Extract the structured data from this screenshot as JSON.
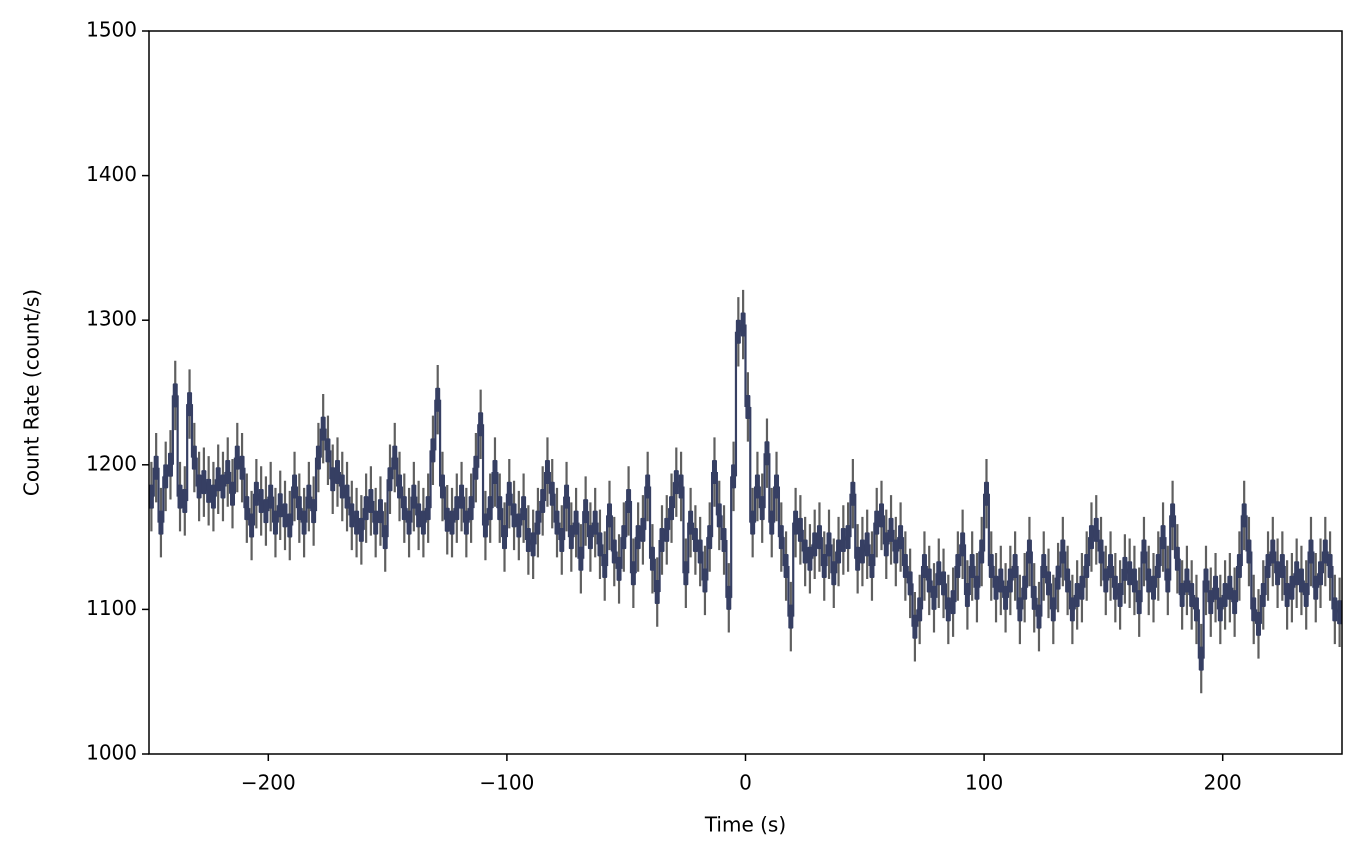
{
  "chart_data": {
    "type": "step-errorbar",
    "xlabel": "Time (s)",
    "ylabel": "Count Rate (count/s)",
    "xlim": [
      -250,
      250
    ],
    "ylim": [
      1000,
      1500
    ],
    "xticks": [
      {
        "value": -200,
        "label": "−200"
      },
      {
        "value": -100,
        "label": "−100"
      },
      0,
      100,
      200
    ],
    "yticks": [
      1000,
      1100,
      1200,
      1300,
      1400,
      1500
    ],
    "yerr": 24,
    "errcolor": "#5f5f5f",
    "x": [
      -249,
      -247,
      -245,
      -243,
      -241,
      -239,
      -237,
      -235,
      -233,
      -231,
      -229,
      -227,
      -225,
      -223,
      -221,
      -219,
      -217,
      -215,
      -213,
      -211,
      -209,
      -207,
      -205,
      -203,
      -201,
      -199,
      -197,
      -195,
      -193,
      -191,
      -189,
      -187,
      -185,
      -183,
      -181,
      -179,
      -177,
      -175,
      -173,
      -171,
      -169,
      -167,
      -165,
      -163,
      -161,
      -159,
      -157,
      -155,
      -153,
      -151,
      -149,
      -147,
      -145,
      -143,
      -141,
      -139,
      -137,
      -135,
      -133,
      -131,
      -129,
      -127,
      -125,
      -123,
      -121,
      -119,
      -117,
      -115,
      -113,
      -111,
      -109,
      -107,
      -105,
      -103,
      -101,
      -99,
      -97,
      -95,
      -93,
      -91,
      -89,
      -87,
      -85,
      -83,
      -81,
      -79,
      -77,
      -75,
      -73,
      -71,
      -69,
      -67,
      -65,
      -63,
      -61,
      -59,
      -57,
      -55,
      -53,
      -51,
      -49,
      -47,
      -45,
      -43,
      -41,
      -39,
      -37,
      -35,
      -33,
      -31,
      -29,
      -27,
      -25,
      -23,
      -21,
      -19,
      -17,
      -15,
      -13,
      -11,
      -9,
      -7,
      -5,
      -3,
      -1,
      1,
      3,
      5,
      7,
      9,
      11,
      13,
      15,
      17,
      19,
      21,
      23,
      25,
      27,
      29,
      31,
      33,
      35,
      37,
      39,
      41,
      43,
      45,
      47,
      49,
      51,
      53,
      55,
      57,
      59,
      61,
      63,
      65,
      67,
      69,
      71,
      73,
      75,
      77,
      79,
      81,
      83,
      85,
      87,
      89,
      91,
      93,
      95,
      97,
      99,
      101,
      103,
      105,
      107,
      109,
      111,
      113,
      115,
      117,
      119,
      121,
      123,
      125,
      127,
      129,
      131,
      133,
      135,
      137,
      139,
      141,
      143,
      145,
      147,
      149,
      151,
      153,
      155,
      157,
      159,
      161,
      163,
      165,
      167,
      169,
      171,
      173,
      175,
      177,
      179,
      181,
      183,
      185,
      187,
      189,
      191,
      193,
      195,
      197,
      199,
      201,
      203,
      205,
      207,
      209,
      211,
      213,
      215,
      217,
      219,
      221,
      223,
      225,
      227,
      229,
      231,
      233,
      235,
      237,
      239,
      241,
      243,
      245,
      247,
      249
    ],
    "series": [
      {
        "color": "#363f63",
        "values": [
          1178,
          1198,
          1160,
          1192,
          1200,
          1248,
          1178,
          1175,
          1242,
          1205,
          1185,
          1188,
          1182,
          1178,
          1190,
          1185,
          1195,
          1180,
          1205,
          1198,
          1170,
          1158,
          1180,
          1175,
          1168,
          1178,
          1160,
          1172,
          1165,
          1158,
          1185,
          1170,
          1160,
          1178,
          1168,
          1205,
          1225,
          1210,
          1190,
          1195,
          1185,
          1178,
          1165,
          1160,
          1155,
          1170,
          1175,
          1160,
          1168,
          1150,
          1190,
          1205,
          1185,
          1170,
          1160,
          1178,
          1165,
          1160,
          1170,
          1210,
          1245,
          1185,
          1162,
          1160,
          1170,
          1178,
          1160,
          1170,
          1198,
          1228,
          1158,
          1170,
          1195,
          1170,
          1150,
          1180,
          1165,
          1158,
          1170,
          1148,
          1145,
          1160,
          1175,
          1195,
          1180,
          1160,
          1148,
          1178,
          1150,
          1160,
          1135,
          1168,
          1150,
          1160,
          1145,
          1130,
          1165,
          1140,
          1128,
          1150,
          1175,
          1125,
          1150,
          1155,
          1185,
          1135,
          1112,
          1148,
          1155,
          1170,
          1188,
          1185,
          1125,
          1160,
          1148,
          1140,
          1120,
          1150,
          1195,
          1165,
          1148,
          1108,
          1192,
          1292,
          1297,
          1240,
          1160,
          1185,
          1170,
          1208,
          1160,
          1185,
          1150,
          1130,
          1095,
          1160,
          1155,
          1140,
          1135,
          1145,
          1150,
          1130,
          1145,
          1125,
          1140,
          1148,
          1150,
          1180,
          1135,
          1140,
          1145,
          1130,
          1160,
          1165,
          1145,
          1155,
          1140,
          1150,
          1130,
          1118,
          1088,
          1100,
          1130,
          1120,
          1108,
          1125,
          1118,
          1100,
          1105,
          1130,
          1145,
          1110,
          1130,
          1115,
          1140,
          1180,
          1130,
          1115,
          1120,
          1108,
          1120,
          1130,
          1100,
          1115,
          1140,
          1108,
          1095,
          1130,
          1118,
          1100,
          1122,
          1140,
          1120,
          1100,
          1110,
          1115,
          1130,
          1150,
          1155,
          1140,
          1120,
          1130,
          1115,
          1110,
          1128,
          1125,
          1120,
          1105,
          1140,
          1120,
          1115,
          1130,
          1150,
          1120,
          1165,
          1135,
          1110,
          1120,
          1110,
          1100,
          1066,
          1120,
          1105,
          1115,
          1100,
          1110,
          1115,
          1105,
          1130,
          1165,
          1140,
          1100,
          1090,
          1110,
          1130,
          1140,
          1125,
          1130,
          1110,
          1115,
          1125,
          1120,
          1110,
          1140,
          1115,
          1125,
          1140,
          1130,
          1100,
          1098
        ]
      }
    ]
  }
}
